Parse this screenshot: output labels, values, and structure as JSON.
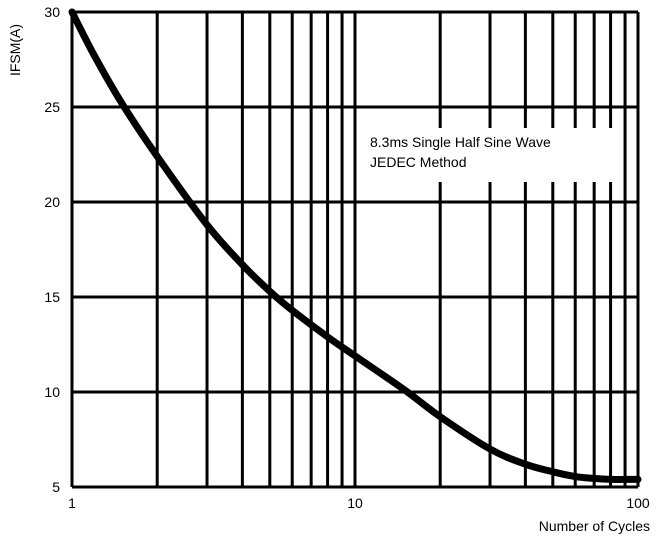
{
  "chart_data": {
    "type": "line",
    "title": "",
    "xlabel": "Number of Cycles",
    "ylabel": "IFSM(A)",
    "xscale": "log",
    "xlim": [
      1,
      100
    ],
    "ylim": [
      5,
      30
    ],
    "xticks": [
      1,
      10,
      100
    ],
    "xtick_labels": [
      "1",
      "10",
      "100"
    ],
    "yticks": [
      5,
      10,
      15,
      20,
      25,
      30
    ],
    "ytick_labels": [
      "5",
      "10",
      "15",
      "20",
      "25",
      "30"
    ],
    "grid": true,
    "annotation": [
      "8.3ms Single Half Sine Wave",
      "JEDEC Method"
    ],
    "series": [
      {
        "x": [
          1,
          1.2,
          1.5,
          2,
          3,
          4,
          5,
          6,
          8,
          10,
          15,
          20,
          30,
          40,
          50,
          60,
          70,
          80,
          90,
          100
        ],
        "y": [
          30,
          27.7,
          25.2,
          22.4,
          18.8,
          16.7,
          15.3,
          14.3,
          12.9,
          11.9,
          10.1,
          8.7,
          7.0,
          6.2,
          5.8,
          5.55,
          5.45,
          5.4,
          5.4,
          5.4
        ]
      }
    ]
  }
}
